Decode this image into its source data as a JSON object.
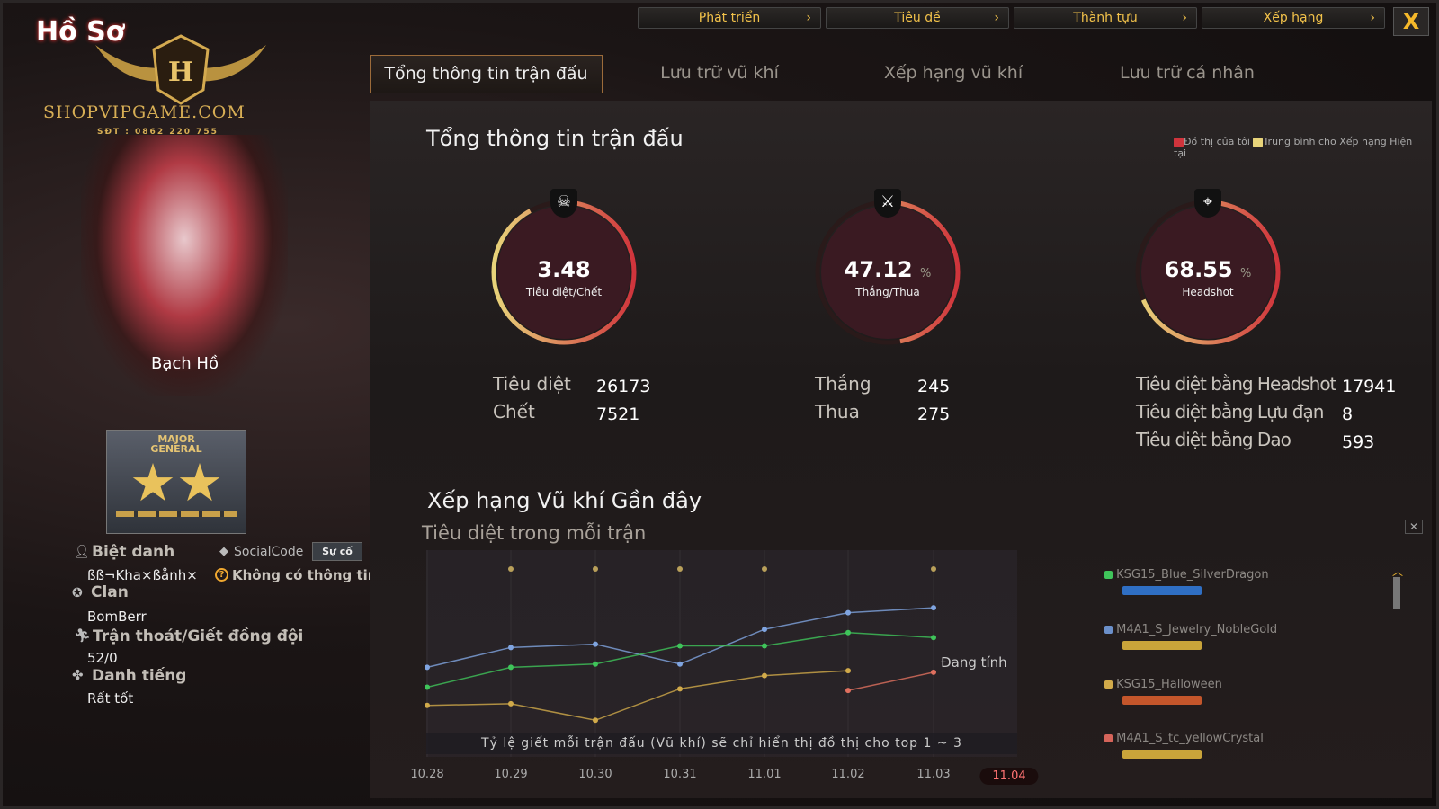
{
  "logo": {
    "title": "Hồ Sơ",
    "watermark": "SHOPVIPGAME.COM",
    "phone": "SĐT : 0862 220 755"
  },
  "nav": {
    "buttons": [
      "Phát triển",
      "Tiêu đề",
      "Thành tựu",
      "Xếp hạng"
    ],
    "close_label": "X"
  },
  "tabs": [
    {
      "label": "Tổng thông tin trận đấu",
      "active": true
    },
    {
      "label": "Lưu trữ vũ khí"
    },
    {
      "label": "Xếp hạng vũ khí"
    },
    {
      "label": "Lưu trữ cá nhân"
    }
  ],
  "profile": {
    "character_name": "Bạch Hồ",
    "rank_badge": "MAJOR GENERAL",
    "nickname_label": "Biệt danh",
    "nickname": "ßß¬Kha×ßånh×",
    "socialcode_label": "SocialCode",
    "report_button": "Sự cố",
    "socialcode_value": "Không có thông tin",
    "clan_label": "Clan",
    "clan": "BomBerr",
    "escape_label": "Trận thoát/Giết đồng đội",
    "escape_value": "52/0",
    "reputation_label": "Danh tiếng",
    "reputation": "Rất tốt"
  },
  "summary": {
    "title": "Tổng thông tin trận đấu",
    "legend": {
      "mine": "Đồ thị của tôi",
      "average": "Trung bình cho Xếp hạng Hiện tại",
      "mine_color": "#d0343c",
      "average_color": "#e8d47a"
    },
    "gauges": [
      {
        "value": "3.48",
        "unit": "",
        "label": "Tiêu diệt/Chết",
        "icon": "skull-crossbones-icon",
        "fill": 0.92
      },
      {
        "value": "47.12",
        "unit": "%",
        "label": "Thắng/Thua",
        "icon": "crossed-rifles-icon",
        "fill": 0.4712
      },
      {
        "value": "68.55",
        "unit": "%",
        "label": "Headshot",
        "icon": "crosshair-rifle-icon",
        "fill": 0.6855
      }
    ],
    "stats": [
      [
        {
          "label": "Tiêu diệt",
          "value": "26173"
        },
        {
          "label": "Chết",
          "value": "7521"
        }
      ],
      [
        {
          "label": "Thắng",
          "value": "245"
        },
        {
          "label": "Thua",
          "value": "275"
        }
      ],
      [
        {
          "label": "Tiêu diệt bằng Headshot",
          "value": "17941"
        },
        {
          "label": "Tiêu diệt bằng Lựu đạn",
          "value": "8"
        },
        {
          "label": "Tiêu diệt bằng Dao",
          "value": "593"
        }
      ]
    ]
  },
  "recent": {
    "title": "Xếp hạng Vũ khí Gần đây",
    "subtitle": "Tiêu diệt trong mỗi trận",
    "calculating": "Đang tính",
    "note": "Tỷ lệ giết mỗi trận đấu (Vũ khí) sẽ chỉ hiển thị đồ thị cho top 1 ~ 3",
    "weapons": [
      {
        "name": "KSG15_Blue_SilverDragon",
        "color": "#3fc45a",
        "gun": "#2f6fc4"
      },
      {
        "name": "M4A1_S_Jewelry_NobleGold",
        "color": "#6b8fc9",
        "gun": "#c9a43a"
      },
      {
        "name": "KSG15_Halloween",
        "color": "#d1aa4a",
        "gun": "#c4562b"
      },
      {
        "name": "M4A1_S_tc_yellowCrystal",
        "color": "#d5645a",
        "gun": "#c9a43a"
      }
    ]
  },
  "chart_data": {
    "type": "line",
    "title": "Xếp hạng Vũ khí Gần đây",
    "ylabel": "Tiêu diệt trong mỗi trận",
    "categories": [
      "10.28",
      "10.29",
      "10.30",
      "10.31",
      "11.01",
      "11.02",
      "11.03",
      "11.04"
    ],
    "selected_category": "11.04",
    "ylim": [
      0,
      10
    ],
    "grid": true,
    "legend": "right",
    "series": [
      {
        "name": "M4A1_S_Jewelry_NobleGold",
        "color": "#7fa4e0",
        "values": [
          4.0,
          5.2,
          5.4,
          4.2,
          6.3,
          7.3,
          7.6,
          null
        ]
      },
      {
        "name": "KSG15_Blue_SilverDragon",
        "color": "#3fc45a",
        "values": [
          2.8,
          4.0,
          4.2,
          5.3,
          5.3,
          6.1,
          5.8,
          null
        ]
      },
      {
        "name": "KSG15_Halloween",
        "color": "#d1aa4a",
        "values": [
          1.7,
          1.8,
          0.8,
          2.7,
          3.5,
          3.8,
          null,
          null
        ]
      },
      {
        "name": "M4A1_S_tc_yellowCrystal",
        "color": "#e0705f",
        "values": [
          null,
          null,
          null,
          null,
          null,
          2.6,
          3.7,
          null
        ]
      }
    ],
    "match_markers": [
      "10.29",
      "10.30",
      "10.31",
      "11.01",
      "11.03"
    ]
  }
}
